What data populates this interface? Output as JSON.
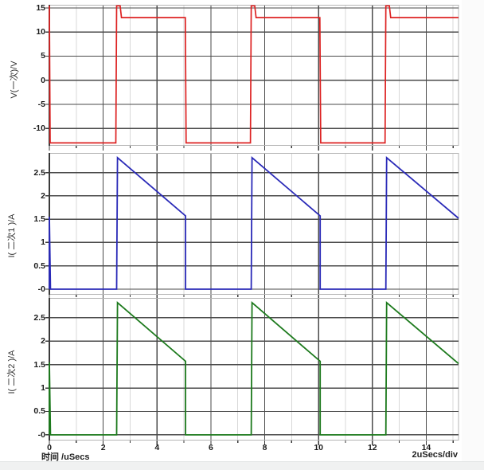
{
  "footer": {
    "x_axis_title": "时间  /uSecs",
    "scale_per_div": "2uSecs/div"
  },
  "colors": {
    "primary_voltage_trace": "#dd2222",
    "secondary1_current_trace": "#2a2ab8",
    "secondary2_current_trace": "#1d7a1d",
    "grid_dark": "#4a4a4a",
    "grid_light": "#d8d8d8",
    "frame": "#b5b5b5",
    "axis": "#3a3a3a"
  },
  "x_axis": {
    "tick_labels": [
      "0",
      "2",
      "4",
      "6",
      "8",
      "10",
      "12",
      "14"
    ],
    "tick_values": [
      0,
      2,
      4,
      6,
      8,
      10,
      12,
      14
    ],
    "unit": "uSecs",
    "per_division": "2uSecs/div"
  },
  "chart_data": [
    {
      "id": "primary-voltage",
      "type": "line",
      "ylabel": "V(一次)/V",
      "xlim": [
        0,
        15.2
      ],
      "ylim": [
        -13.6,
        15.66
      ],
      "grid": true,
      "yticks": [
        {
          "v": 15,
          "label": "15"
        },
        {
          "v": 10,
          "label": "10"
        },
        {
          "v": 5,
          "label": "5"
        },
        {
          "v": 0,
          "label": "0"
        },
        {
          "v": -5,
          "label": "-5"
        },
        {
          "v": -10,
          "label": "-10"
        }
      ],
      "x_dark_gridlines": [
        2,
        4,
        6,
        8,
        10,
        12,
        14
      ],
      "x_light_gridlines": [
        1,
        3,
        5,
        7,
        9,
        11,
        13,
        15
      ],
      "series": [
        {
          "name": "V(一次)",
          "color": "#dd2222",
          "width": 1.7,
          "points": [
            [
              0,
              15.45
            ],
            [
              0.03,
              -13
            ],
            [
              2.47,
              -13
            ],
            [
              2.5,
              15.45
            ],
            [
              2.63,
              15.45
            ],
            [
              2.68,
              13
            ],
            [
              5.05,
              13
            ],
            [
              5.08,
              -13
            ],
            [
              7.47,
              -13
            ],
            [
              7.5,
              15.45
            ],
            [
              7.63,
              15.45
            ],
            [
              7.68,
              13
            ],
            [
              10.05,
              13
            ],
            [
              10.08,
              -13
            ],
            [
              12.47,
              -13
            ],
            [
              12.5,
              15.45
            ],
            [
              12.63,
              15.45
            ],
            [
              12.68,
              13
            ],
            [
              15.2,
              13
            ]
          ]
        }
      ]
    },
    {
      "id": "secondary1-current",
      "type": "line",
      "ylabel": "I( 二次1 )/A",
      "xlim": [
        0,
        15.2
      ],
      "ylim": [
        -0.12,
        2.92
      ],
      "grid": true,
      "yticks": [
        {
          "v": 2.5,
          "label": "2.5"
        },
        {
          "v": 2,
          "label": "2"
        },
        {
          "v": 1.5,
          "label": "1.5"
        },
        {
          "v": 1,
          "label": "1"
        },
        {
          "v": 0.5,
          "label": "0.5"
        },
        {
          "v": 0,
          "label": "-0"
        }
      ],
      "x_dark_gridlines": [
        2,
        4,
        6,
        8,
        10,
        12,
        14
      ],
      "x_light_gridlines": [
        1,
        3,
        5,
        7,
        9,
        11,
        13,
        15
      ],
      "series": [
        {
          "name": "I(二次1)",
          "color": "#2a2ab8",
          "width": 1.8,
          "points": [
            [
              0,
              0
            ],
            [
              0,
              1.55
            ],
            [
              0.04,
              0
            ],
            [
              2.5,
              0
            ],
            [
              2.53,
              2.82
            ],
            [
              5.06,
              1.57
            ],
            [
              5.06,
              0
            ],
            [
              7.5,
              0
            ],
            [
              7.53,
              2.82
            ],
            [
              10.06,
              1.57
            ],
            [
              10.06,
              0
            ],
            [
              12.5,
              0
            ],
            [
              12.53,
              2.82
            ],
            [
              15.2,
              1.52
            ]
          ]
        }
      ]
    },
    {
      "id": "secondary2-current",
      "type": "line",
      "ylabel": "I( 二次2 )/A",
      "xlim": [
        0,
        15.2
      ],
      "ylim": [
        -0.12,
        2.92
      ],
      "grid": true,
      "yticks": [
        {
          "v": 2.5,
          "label": "2.5"
        },
        {
          "v": 2,
          "label": "2"
        },
        {
          "v": 1.5,
          "label": "1.5"
        },
        {
          "v": 1,
          "label": "1"
        },
        {
          "v": 0.5,
          "label": "0.5"
        },
        {
          "v": 0,
          "label": "-0"
        }
      ],
      "x_dark_gridlines": [
        2,
        4,
        6,
        8,
        10,
        12,
        14
      ],
      "x_light_gridlines": [
        1,
        3,
        5,
        7,
        9,
        11,
        13,
        15
      ],
      "series": [
        {
          "name": "I(二次2)",
          "color": "#1d7a1d",
          "width": 1.8,
          "points": [
            [
              0,
              0
            ],
            [
              0,
              1.55
            ],
            [
              0.04,
              0
            ],
            [
              2.5,
              0
            ],
            [
              2.53,
              2.82
            ],
            [
              5.06,
              1.57
            ],
            [
              5.06,
              0
            ],
            [
              7.5,
              0
            ],
            [
              7.53,
              2.82
            ],
            [
              10.06,
              1.57
            ],
            [
              10.06,
              0
            ],
            [
              12.5,
              0
            ],
            [
              12.53,
              2.82
            ],
            [
              15.2,
              1.52
            ]
          ]
        }
      ]
    }
  ]
}
